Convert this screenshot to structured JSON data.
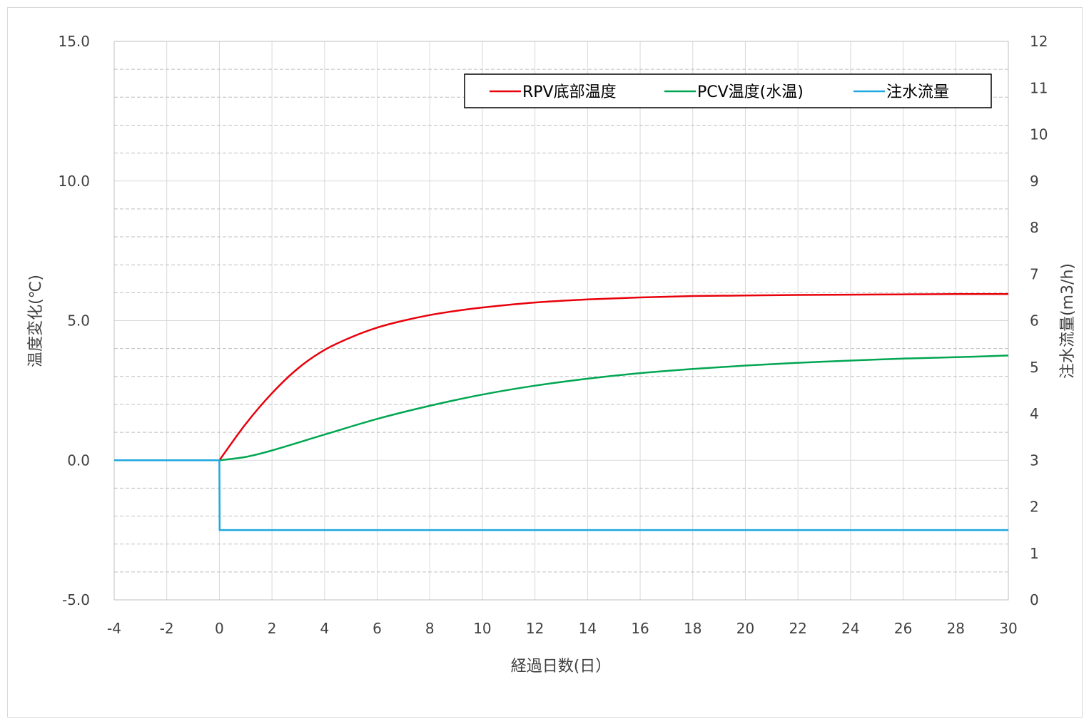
{
  "chart_data": {
    "type": "line",
    "xlabel": "経過日数(日）",
    "ylabel_left": "温度変化(℃)",
    "ylabel_right": "注水流量(m3/h)",
    "xlim": [
      -4,
      30
    ],
    "ylim_left": [
      -5.0,
      15.0
    ],
    "ylim_right": [
      0,
      12
    ],
    "x_ticks": [
      "-4",
      "-2",
      "0",
      "2",
      "4",
      "6",
      "8",
      "10",
      "12",
      "14",
      "16",
      "18",
      "20",
      "22",
      "24",
      "26",
      "28",
      "30"
    ],
    "y_left_ticks": [
      "-5.0",
      "0.0",
      "5.0",
      "10.0",
      "15.0"
    ],
    "y_right_ticks": [
      "0",
      "1",
      "2",
      "3",
      "4",
      "5",
      "6",
      "7",
      "8",
      "9",
      "10",
      "11",
      "12"
    ],
    "grid": true,
    "legend_position": "top-right",
    "series": [
      {
        "name": "RPV底部温度",
        "axis": "left",
        "color": "#e8000b",
        "x": [
          0,
          1,
          2,
          3,
          4,
          5,
          6,
          7,
          8,
          9,
          10,
          12,
          14,
          16,
          18,
          20,
          22,
          24,
          26,
          28,
          30
        ],
        "y": [
          0.0,
          1.3,
          2.4,
          3.3,
          3.95,
          4.4,
          4.75,
          5.0,
          5.2,
          5.35,
          5.47,
          5.65,
          5.76,
          5.83,
          5.88,
          5.9,
          5.92,
          5.93,
          5.94,
          5.95,
          5.95
        ]
      },
      {
        "name": "PCV温度(水温)",
        "axis": "left",
        "color": "#00a651",
        "x": [
          0,
          1,
          2,
          4,
          6,
          8,
          10,
          12,
          14,
          16,
          18,
          20,
          22,
          24,
          26,
          28,
          30
        ],
        "y": [
          0.0,
          0.12,
          0.35,
          0.92,
          1.48,
          1.95,
          2.35,
          2.67,
          2.92,
          3.12,
          3.27,
          3.39,
          3.49,
          3.57,
          3.64,
          3.69,
          3.75
        ]
      },
      {
        "name": "注水流量",
        "axis": "right",
        "color": "#1fa8df",
        "x": [
          -4,
          0,
          0.01,
          30
        ],
        "y": [
          3,
          3,
          1.5,
          1.5
        ]
      }
    ]
  }
}
